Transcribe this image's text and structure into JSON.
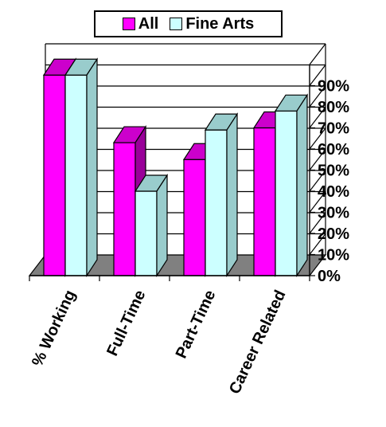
{
  "chart_data": {
    "type": "bar",
    "categories": [
      "% Working",
      "Full-Time",
      "Part-Time",
      "Career Related"
    ],
    "series": [
      {
        "name": "All",
        "values": [
          95,
          63,
          55,
          70
        ],
        "color": "#ff00ff"
      },
      {
        "name": "Fine Arts",
        "values": [
          95,
          40,
          69,
          78
        ],
        "color": "#ccffff"
      }
    ],
    "yticks": [
      "0%",
      "10%",
      "20%",
      "30%",
      "40%",
      "50%",
      "60%",
      "70%",
      "80%",
      "90%"
    ],
    "ylim": [
      0,
      100
    ],
    "grid": true,
    "legend": "top",
    "style": "3d-column"
  }
}
